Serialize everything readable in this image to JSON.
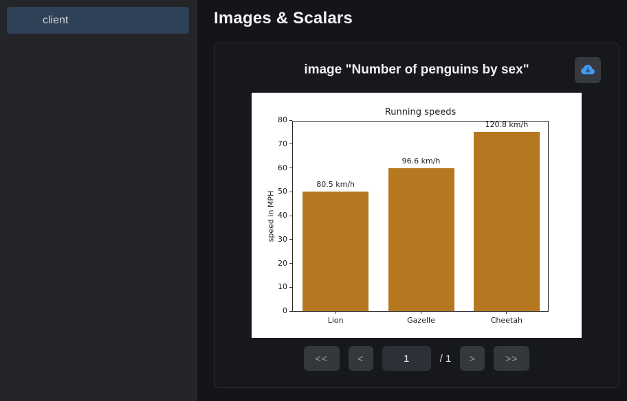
{
  "sidebar": {
    "items": [
      {
        "label": "client",
        "selected": true
      }
    ]
  },
  "header": {
    "title": "Images & Scalars"
  },
  "card": {
    "title": "image \"Number of penguins by sex\"",
    "download_icon": "cloud-download-icon"
  },
  "chart_data": {
    "type": "bar",
    "title": "Running speeds",
    "xlabel": "",
    "ylabel": "speed in MPH",
    "categories": [
      "Lion",
      "Gazelle",
      "Cheetah"
    ],
    "values": [
      50,
      60,
      75
    ],
    "bar_labels": [
      "80.5 km/h",
      "96.6 km/h",
      "120.8 km/h"
    ],
    "ylim": [
      0,
      80
    ],
    "ytick_step": 10,
    "bar_color": "#b5771f",
    "grid": false,
    "legend": null
  },
  "pagination": {
    "first_label": "<<",
    "prev_label": "<",
    "page_value": "1",
    "total_label": "/ 1",
    "next_label": ">",
    "last_label": ">>"
  },
  "colors": {
    "accent_blue": "#4298f0",
    "selected_item_bg": "#2f4156",
    "bar_color": "#b5771f"
  }
}
